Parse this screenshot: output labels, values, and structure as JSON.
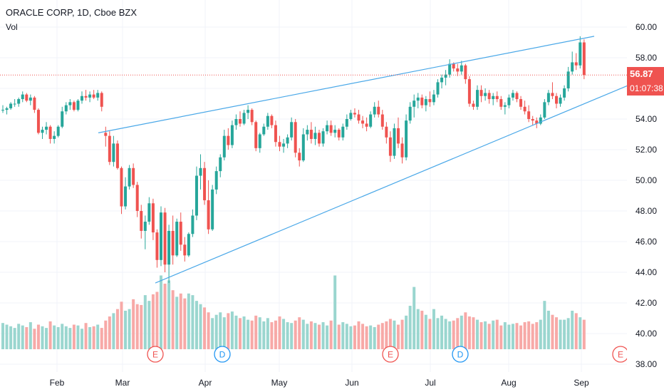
{
  "legend": {
    "symbol_line": "ORACLE CORP, 1D, Cboe BZX",
    "volume_label": "Vol"
  },
  "price_tag": {
    "last_price": "56.87",
    "countdown": "01:07:38"
  },
  "colors": {
    "up": "#26a69a",
    "down": "#ef5350",
    "up_volume": "#9ad6cf",
    "down_volume": "#f7a9a7",
    "trendline": "#4aa8e8",
    "grid": "#f0f3fa",
    "axis_text": "#131722",
    "last_price_line": "#ef5350",
    "earnings_marker": "#ef5350",
    "dividend_marker": "#2196f3"
  },
  "chart_data": {
    "type": "candlestick",
    "title": "ORACLE CORP, 1D, Cboe BZX",
    "price_axis": {
      "ticks": [
        "60.00",
        "58.00",
        "56.00",
        "54.00",
        "52.00",
        "50.00",
        "48.00",
        "46.00",
        "44.00",
        "42.00",
        "40.00",
        "38.00"
      ],
      "range": [
        37.5,
        60.8
      ]
    },
    "time_axis": {
      "labels": [
        "Feb",
        "Mar",
        "Apr",
        "May",
        "Jun",
        "Jul",
        "Aug",
        "Sep"
      ]
    },
    "last_price": 56.87,
    "trendlines": [
      {
        "from": [
          "2020-02-25",
          53.1
        ],
        "to": [
          "2020-09-01",
          59.4
        ]
      },
      {
        "from": [
          "2020-03-16",
          43.3
        ],
        "to": [
          "2020-09-03",
          56.2
        ]
      }
    ],
    "events": [
      {
        "label": "E",
        "kind": "earnings",
        "month": "Mar"
      },
      {
        "label": "D",
        "kind": "dividend",
        "month": "Apr"
      },
      {
        "label": "E",
        "kind": "earnings",
        "month": "Jun"
      },
      {
        "label": "D",
        "kind": "dividend",
        "month": "Jul"
      },
      {
        "label": "E",
        "kind": "earnings",
        "month": "Sep"
      }
    ],
    "candles": [
      [
        54.6,
        54.9,
        54.4,
        54.6
      ],
      [
        54.6,
        54.8,
        54.3,
        54.7
      ],
      [
        54.7,
        55.1,
        54.6,
        55.0
      ],
      [
        55.0,
        55.3,
        54.8,
        55.0
      ],
      [
        55.0,
        55.4,
        54.8,
        55.3
      ],
      [
        55.3,
        55.8,
        55.1,
        55.6
      ],
      [
        55.6,
        55.7,
        55.1,
        55.2
      ],
      [
        55.2,
        55.6,
        54.9,
        55.4
      ],
      [
        55.4,
        55.5,
        54.4,
        54.6
      ],
      [
        54.6,
        54.7,
        53.0,
        53.1
      ],
      [
        53.1,
        53.5,
        52.7,
        53.3
      ],
      [
        53.3,
        53.8,
        53.0,
        53.5
      ],
      [
        53.5,
        53.6,
        52.4,
        52.7
      ],
      [
        52.7,
        53.2,
        52.4,
        52.9
      ],
      [
        52.9,
        53.6,
        52.8,
        53.5
      ],
      [
        53.5,
        54.8,
        53.4,
        54.5
      ],
      [
        54.5,
        55.1,
        54.3,
        54.9
      ],
      [
        54.9,
        55.3,
        54.6,
        55.1
      ],
      [
        55.1,
        55.2,
        54.5,
        54.6
      ],
      [
        54.6,
        55.3,
        54.5,
        55.2
      ],
      [
        55.2,
        55.8,
        55.0,
        55.5
      ],
      [
        55.5,
        55.9,
        55.2,
        55.4
      ],
      [
        55.4,
        55.8,
        55.1,
        55.6
      ],
      [
        55.6,
        55.9,
        55.3,
        55.4
      ],
      [
        55.4,
        55.9,
        55.2,
        55.7
      ],
      [
        55.7,
        55.8,
        54.5,
        54.8
      ],
      [
        53.1,
        53.5,
        52.2,
        52.9
      ],
      [
        52.9,
        53.2,
        51.0,
        51.2
      ],
      [
        51.2,
        52.9,
        50.9,
        52.4
      ],
      [
        52.4,
        52.6,
        50.7,
        50.8
      ],
      [
        50.8,
        50.9,
        47.8,
        48.3
      ],
      [
        48.3,
        50.2,
        48.1,
        49.6
      ],
      [
        49.6,
        51.0,
        49.4,
        50.8
      ],
      [
        50.8,
        51.1,
        49.5,
        49.7
      ],
      [
        49.7,
        49.9,
        47.6,
        48.0
      ],
      [
        48.0,
        48.4,
        46.2,
        46.7
      ],
      [
        46.7,
        47.7,
        45.5,
        47.3
      ],
      [
        47.3,
        48.9,
        47.1,
        48.5
      ],
      [
        48.5,
        48.8,
        46.1,
        46.6
      ],
      [
        46.6,
        46.8,
        44.3,
        44.8
      ],
      [
        44.8,
        48.3,
        44.4,
        47.9
      ],
      [
        47.9,
        48.2,
        44.0,
        44.5
      ],
      [
        44.5,
        47.1,
        43.3,
        46.7
      ],
      [
        46.7,
        47.7,
        44.5,
        45.1
      ],
      [
        45.1,
        47.5,
        45.0,
        47.3
      ],
      [
        47.3,
        47.9,
        45.4,
        45.8
      ],
      [
        45.8,
        46.3,
        44.7,
        45.1
      ],
      [
        45.1,
        46.6,
        45.0,
        46.5
      ],
      [
        46.5,
        48.1,
        46.3,
        47.7
      ],
      [
        47.7,
        50.9,
        47.4,
        50.3
      ],
      [
        50.3,
        51.7,
        49.4,
        50.8
      ],
      [
        50.8,
        51.2,
        48.4,
        48.7
      ],
      [
        48.7,
        50.0,
        46.5,
        46.8
      ],
      [
        46.8,
        49.7,
        46.7,
        49.4
      ],
      [
        49.4,
        50.9,
        49.1,
        50.6
      ],
      [
        50.6,
        51.7,
        50.2,
        51.5
      ],
      [
        51.5,
        53.3,
        51.3,
        52.9
      ],
      [
        52.9,
        53.4,
        52.0,
        52.3
      ],
      [
        52.3,
        53.9,
        52.1,
        53.6
      ],
      [
        53.6,
        54.3,
        53.3,
        54.0
      ],
      [
        54.0,
        54.5,
        53.5,
        53.7
      ],
      [
        53.7,
        54.6,
        53.6,
        54.4
      ],
      [
        54.4,
        54.9,
        54.0,
        54.6
      ],
      [
        54.6,
        54.7,
        53.6,
        53.8
      ],
      [
        53.8,
        53.9,
        51.9,
        52.1
      ],
      [
        52.1,
        53.1,
        51.8,
        53.0
      ],
      [
        53.0,
        53.7,
        52.9,
        53.5
      ],
      [
        53.5,
        54.4,
        53.3,
        54.2
      ],
      [
        54.2,
        54.3,
        53.4,
        53.6
      ],
      [
        53.6,
        53.9,
        52.2,
        52.5
      ],
      [
        52.5,
        52.9,
        51.9,
        52.2
      ],
      [
        52.2,
        52.7,
        51.8,
        52.4
      ],
      [
        52.4,
        53.0,
        52.1,
        52.8
      ],
      [
        52.8,
        54.1,
        52.6,
        53.8
      ],
      [
        53.8,
        54.0,
        51.5,
        51.8
      ],
      [
        51.8,
        52.1,
        50.9,
        51.3
      ],
      [
        51.3,
        53.4,
        51.2,
        53.0
      ],
      [
        53.0,
        53.6,
        52.6,
        53.3
      ],
      [
        53.3,
        53.8,
        52.4,
        52.7
      ],
      [
        52.7,
        53.5,
        52.3,
        53.1
      ],
      [
        53.1,
        53.3,
        52.2,
        52.4
      ],
      [
        52.4,
        53.4,
        52.2,
        53.2
      ],
      [
        53.2,
        53.9,
        53.0,
        53.6
      ],
      [
        53.6,
        53.9,
        52.9,
        53.1
      ],
      [
        53.1,
        53.6,
        52.8,
        53.3
      ],
      [
        53.3,
        53.4,
        52.6,
        52.8
      ],
      [
        52.8,
        53.7,
        52.6,
        53.5
      ],
      [
        53.5,
        54.3,
        53.3,
        54.0
      ],
      [
        54.0,
        54.6,
        53.9,
        54.4
      ],
      [
        54.4,
        54.7,
        54.1,
        54.3
      ],
      [
        54.3,
        54.6,
        53.7,
        53.9
      ],
      [
        53.9,
        54.2,
        53.4,
        53.7
      ],
      [
        53.7,
        54.1,
        53.2,
        53.5
      ],
      [
        53.5,
        54.5,
        53.4,
        54.3
      ],
      [
        54.3,
        55.1,
        54.1,
        54.8
      ],
      [
        54.8,
        55.2,
        54.1,
        54.3
      ],
      [
        54.3,
        54.6,
        53.3,
        53.5
      ],
      [
        53.5,
        53.8,
        52.4,
        52.8
      ],
      [
        52.8,
        53.2,
        51.2,
        51.6
      ],
      [
        51.6,
        53.7,
        51.4,
        53.4
      ],
      [
        53.4,
        54.1,
        52.1,
        52.4
      ],
      [
        52.4,
        52.8,
        51.1,
        51.5
      ],
      [
        51.5,
        54.3,
        51.3,
        53.9
      ],
      [
        53.9,
        55.1,
        53.7,
        54.8
      ],
      [
        54.8,
        55.6,
        54.1,
        55.2
      ],
      [
        55.2,
        55.7,
        54.7,
        55.4
      ],
      [
        55.4,
        55.6,
        54.7,
        54.9
      ],
      [
        54.9,
        55.5,
        54.5,
        55.3
      ],
      [
        55.3,
        55.8,
        54.8,
        55.1
      ],
      [
        55.1,
        55.9,
        54.9,
        55.6
      ],
      [
        55.6,
        56.6,
        55.4,
        56.4
      ],
      [
        56.4,
        56.9,
        56.0,
        56.7
      ],
      [
        56.7,
        57.2,
        56.2,
        56.9
      ],
      [
        56.9,
        57.9,
        56.7,
        57.6
      ],
      [
        57.6,
        57.7,
        57.1,
        57.3
      ],
      [
        57.3,
        57.6,
        56.8,
        57.1
      ],
      [
        57.1,
        57.8,
        56.9,
        57.5
      ],
      [
        57.5,
        57.6,
        56.3,
        56.6
      ],
      [
        56.6,
        56.8,
        54.8,
        55.0
      ],
      [
        55.0,
        55.2,
        54.6,
        54.8
      ],
      [
        54.8,
        56.2,
        54.6,
        55.9
      ],
      [
        55.9,
        56.2,
        55.1,
        55.5
      ],
      [
        55.5,
        56.0,
        55.2,
        55.7
      ],
      [
        55.7,
        55.9,
        55.0,
        55.3
      ],
      [
        55.3,
        55.7,
        54.9,
        55.5
      ],
      [
        55.5,
        55.8,
        55.1,
        55.3
      ],
      [
        55.3,
        55.5,
        54.6,
        54.8
      ],
      [
        54.8,
        55.1,
        54.3,
        54.9
      ],
      [
        54.9,
        55.6,
        54.7,
        55.4
      ],
      [
        55.4,
        55.9,
        55.2,
        55.7
      ],
      [
        55.7,
        55.8,
        55.1,
        55.3
      ],
      [
        55.3,
        55.5,
        54.6,
        54.8
      ],
      [
        54.8,
        55.2,
        54.3,
        54.5
      ],
      [
        54.5,
        54.9,
        53.8,
        54.0
      ],
      [
        54.0,
        54.2,
        53.6,
        53.9
      ],
      [
        53.9,
        54.1,
        53.4,
        53.7
      ],
      [
        53.7,
        54.3,
        53.6,
        54.1
      ],
      [
        54.1,
        55.3,
        54.0,
        55.1
      ],
      [
        55.1,
        55.9,
        54.9,
        55.7
      ],
      [
        55.7,
        56.4,
        55.3,
        55.5
      ],
      [
        55.5,
        55.7,
        54.7,
        55.0
      ],
      [
        55.0,
        55.6,
        54.8,
        55.4
      ],
      [
        55.4,
        56.2,
        55.2,
        56.0
      ],
      [
        56.0,
        57.4,
        55.8,
        57.1
      ],
      [
        57.1,
        58.4,
        56.9,
        57.7
      ],
      [
        57.7,
        58.3,
        57.2,
        57.5
      ],
      [
        57.5,
        59.4,
        57.3,
        59.0
      ],
      [
        59.0,
        59.2,
        56.6,
        56.87
      ]
    ],
    "volume_range": [
      0,
      10
    ],
    "volumes": [
      3.2,
      3.0,
      2.8,
      2.6,
      3.1,
      2.9,
      2.7,
      3.3,
      2.5,
      3.0,
      2.8,
      2.6,
      3.4,
      2.9,
      2.7,
      3.1,
      2.8,
      2.6,
      3.0,
      2.9,
      2.5,
      3.2,
      2.7,
      2.8,
      3.0,
      2.6,
      3.5,
      4.0,
      4.4,
      4.9,
      5.8,
      4.7,
      4.9,
      6.1,
      5.5,
      5.4,
      6.6,
      5.9,
      6.7,
      7.0,
      9.0,
      8.0,
      8.4,
      7.2,
      6.4,
      6.8,
      6.2,
      6.8,
      6.6,
      5.9,
      5.5,
      5.1,
      4.5,
      3.8,
      4.2,
      4.5,
      3.9,
      4.4,
      4.6,
      4.1,
      3.8,
      4.0,
      3.6,
      3.5,
      4.1,
      3.9,
      3.4,
      3.8,
      3.3,
      3.5,
      4.0,
      3.7,
      3.3,
      3.2,
      3.5,
      3.9,
      3.6,
      3.1,
      3.4,
      3.2,
      3.0,
      3.3,
      2.9,
      3.5,
      9.0,
      3.0,
      3.3,
      3.1,
      2.8,
      2.9,
      3.4,
      3.1,
      2.8,
      2.9,
      2.7,
      3.0,
      3.2,
      3.4,
      3.7,
      3.5,
      3.0,
      3.6,
      4.1,
      5.3,
      7.6,
      4.9,
      4.7,
      4.2,
      3.7,
      4.9,
      3.8,
      4.1,
      3.7,
      3.4,
      3.5,
      3.8,
      4.1,
      4.5,
      4.0,
      3.9,
      3.6,
      3.3,
      3.4,
      3.1,
      3.5,
      3.6,
      2.9,
      3.3,
      3.0,
      3.1,
      3.2,
      2.9,
      3.3,
      3.4,
      3.1,
      3.3,
      3.6,
      5.9,
      4.7,
      4.2,
      3.9,
      3.6,
      3.6,
      3.8,
      4.7,
      4.4,
      3.9,
      3.6
    ]
  }
}
